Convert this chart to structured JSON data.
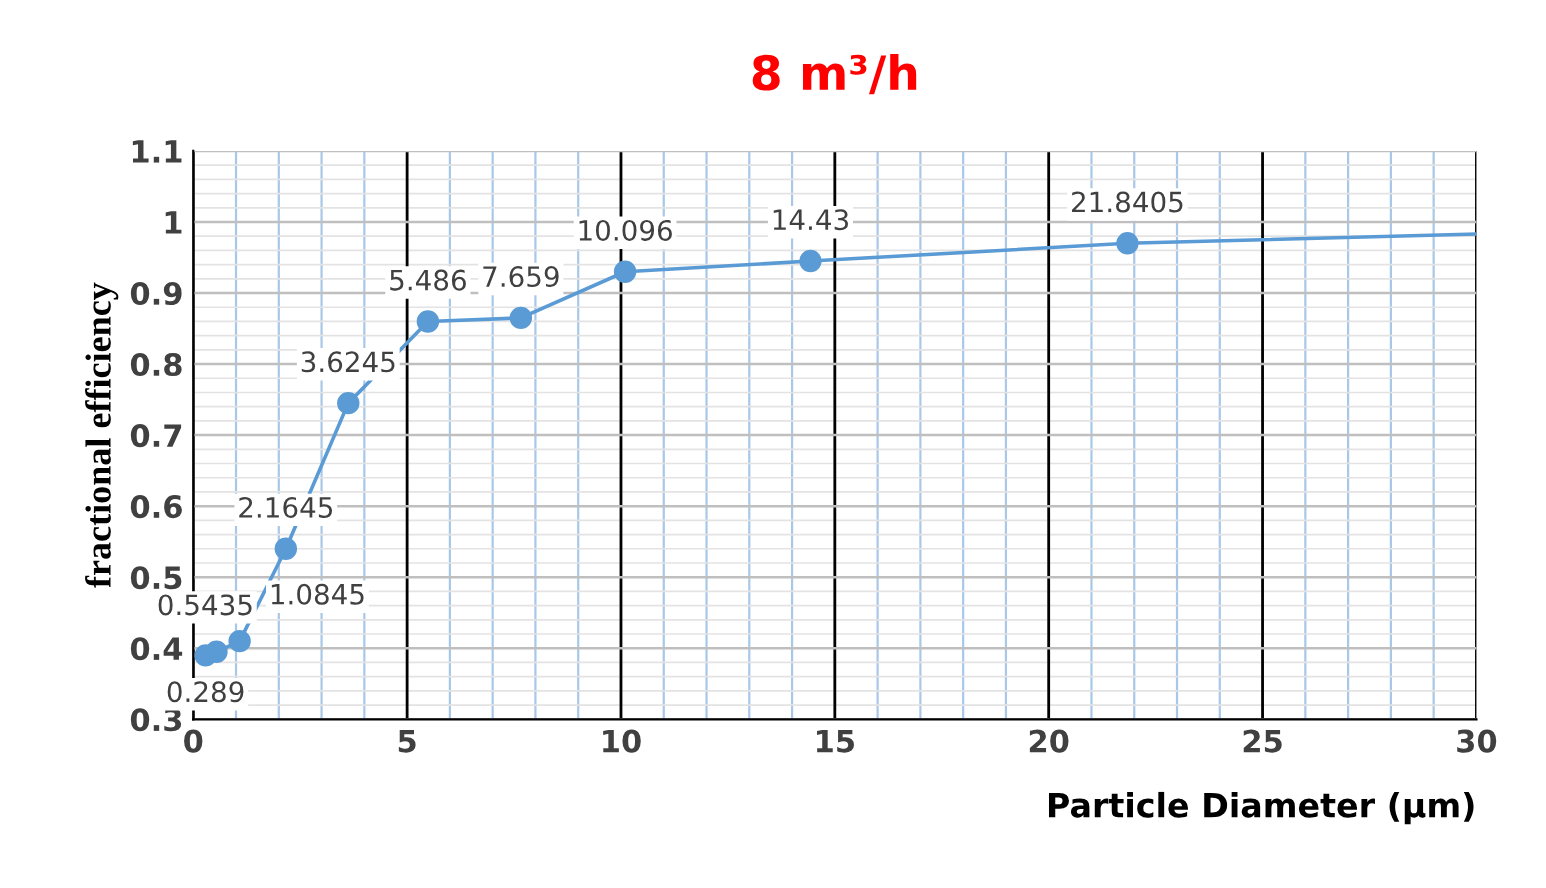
{
  "chart_data": {
    "type": "line",
    "title": "8 m³/h",
    "xlabel": "Particle Diameter (µm)",
    "ylabel": "fractional efficiency",
    "xlim": [
      0,
      30
    ],
    "xticks": [
      0,
      5,
      10,
      15,
      20,
      25,
      30
    ],
    "ylim": [
      0.3,
      1.1
    ],
    "yticks": [
      0.3,
      0.4,
      0.5,
      0.6,
      0.7,
      0.8,
      0.9,
      1,
      1.1
    ],
    "grid": true,
    "line_style": "solid",
    "series": [
      {
        "color": "#5b9bd5",
        "marker": "none",
        "x": [
          0.289,
          0.5435,
          1.0845,
          2.1645,
          3.6245,
          5.486,
          7.659,
          10.096,
          14.43,
          21.8405,
          30
        ],
        "values": [
          0.39,
          0.395,
          0.41,
          0.54,
          0.745,
          0.86,
          0.865,
          0.93,
          0.945,
          0.97,
          0.983
        ]
      },
      {
        "type": "scatter",
        "color": "#5b9bd5",
        "marker": "circle",
        "x": [
          0.289,
          0.5435,
          1.0845,
          2.1645,
          3.6245,
          5.486,
          7.659,
          10.096,
          14.43,
          21.8405
        ],
        "values": [
          0.39,
          0.395,
          0.41,
          0.54,
          0.745,
          0.86,
          0.865,
          0.93,
          0.945,
          0.97
        ]
      }
    ],
    "annotations": [
      {
        "text": "0.289",
        "x": 0.289,
        "y": 0.39
      },
      {
        "text": "0.5435",
        "x": 0.5435,
        "y": 0.395
      },
      {
        "text": "1.0845",
        "x": 1.0845,
        "y": 0.41
      },
      {
        "text": "2.1645",
        "x": 2.1645,
        "y": 0.54
      },
      {
        "text": "3.6245",
        "x": 3.6245,
        "y": 0.745
      },
      {
        "text": "5.486",
        "x": 5.486,
        "y": 0.86
      },
      {
        "text": "7.659",
        "x": 7.659,
        "y": 0.865
      },
      {
        "text": "10.096",
        "x": 10.096,
        "y": 0.93
      },
      {
        "text": "14.43",
        "x": 14.43,
        "y": 0.945
      },
      {
        "text": "21.8405",
        "x": 21.8405,
        "y": 0.97
      }
    ]
  }
}
